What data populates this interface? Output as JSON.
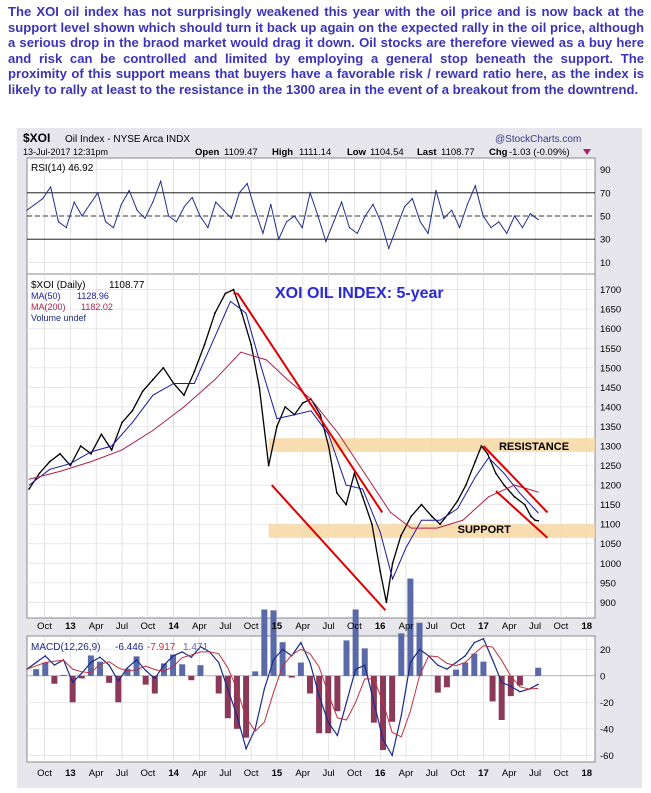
{
  "commentary": "The XOI oil index has not surprisingly weakened this year with the oil price and is now back at the support level shown which should turn it back up again on the expected rally in the oil price, although a serious drop in the braod market would drag it down. Oil stocks are therefore viewed as a buy here and risk can be controlled and limited by employing a general stop beneath the support. The proximity of this support means that buyers have a favorable risk / reward ratio here, as the index is likely to rally at least to the resistance in the 1300 area in the event of a breakout from the downtrend.",
  "header": {
    "symbol": "$XOI",
    "name": "Oil Index - NYSE Arca INDX",
    "source": "@StockCharts.com",
    "date": "13-Jul-2017 12:31pm",
    "open_label": "Open",
    "open": "1109.47",
    "high_label": "High",
    "high": "1111.14",
    "low_label": "Low",
    "low": "1104.54",
    "last_label": "Last",
    "last": "1108.77",
    "chg_label": "Chg",
    "chg": "-1.03 (-0.09%)"
  },
  "colors": {
    "price": "#000000",
    "ma50": "#1a1aa0",
    "ma200": "#b0204a",
    "rsi": "#1f2e8a",
    "macd": "#1a2a8a",
    "signal": "#c03040",
    "hist_pos": "#5a6aa8",
    "hist_neg": "#8a3a58",
    "annotation": "#dd0000",
    "zone": "#f7d9a8",
    "frame_bg": "#e6e6ec"
  },
  "chart_data": [
    {
      "type": "line",
      "panel": "rsi",
      "legend": "RSI(14) 46.92",
      "y_ticks": [
        "90",
        "70",
        "50",
        "30",
        "10"
      ],
      "ylim": [
        0,
        100
      ],
      "reference_lines": [
        70,
        50,
        30
      ],
      "last_value": 46.92,
      "series": [
        {
          "name": "RSI(14)",
          "values": [
            55,
            60,
            65,
            75,
            45,
            40,
            62,
            50,
            60,
            70,
            45,
            40,
            60,
            72,
            55,
            48,
            62,
            80,
            50,
            45,
            58,
            66,
            50,
            40,
            62,
            55,
            48,
            70,
            78,
            55,
            35,
            60,
            30,
            45,
            50,
            40,
            70,
            50,
            28,
            45,
            62,
            40,
            35,
            50,
            60,
            45,
            22,
            40,
            58,
            65,
            45,
            35,
            72,
            48,
            55,
            40,
            60,
            76,
            50,
            40,
            45,
            35,
            50,
            40,
            52,
            46.92
          ]
        }
      ]
    },
    {
      "type": "line",
      "panel": "price",
      "title": "XOI OIL INDEX: 5-year",
      "legend": [
        {
          "symbol": "$XOI (Daily)",
          "value": "1108.77"
        },
        {
          "symbol": "MA(50)",
          "value": "1128.96"
        },
        {
          "symbol": "MA(200)",
          "value": "1182.02"
        },
        {
          "symbol": "Volume undef",
          "value": ""
        }
      ],
      "y_ticks": [
        "1700",
        "1650",
        "1600",
        "1550",
        "1500",
        "1450",
        "1400",
        "1350",
        "1300",
        "1250",
        "1200",
        "1150",
        "1100",
        "1050",
        "1000",
        "950",
        "900"
      ],
      "ylim": [
        860,
        1740
      ],
      "x_ticks": [
        "Oct",
        "13",
        "Apr",
        "Jul",
        "Oct",
        "14",
        "Apr",
        "Jul",
        "Oct",
        "15",
        "Apr",
        "Jul",
        "Oct",
        "16",
        "Apr",
        "Jul",
        "Oct",
        "17",
        "Apr",
        "Jul",
        "Oct",
        "18"
      ],
      "x_span": [
        2012.58,
        2018.08
      ],
      "series": [
        {
          "name": "$XOI (Daily)",
          "values": [
            [
              2012.6,
              1190
            ],
            [
              2012.7,
              1230
            ],
            [
              2012.8,
              1260
            ],
            [
              2012.9,
              1280
            ],
            [
              2013.0,
              1250
            ],
            [
              2013.1,
              1300
            ],
            [
              2013.2,
              1280
            ],
            [
              2013.3,
              1330
            ],
            [
              2013.4,
              1290
            ],
            [
              2013.5,
              1360
            ],
            [
              2013.6,
              1390
            ],
            [
              2013.7,
              1440
            ],
            [
              2013.8,
              1470
            ],
            [
              2013.9,
              1500
            ],
            [
              2014.0,
              1460
            ],
            [
              2014.1,
              1430
            ],
            [
              2014.2,
              1490
            ],
            [
              2014.3,
              1560
            ],
            [
              2014.4,
              1640
            ],
            [
              2014.5,
              1690
            ],
            [
              2014.58,
              1700
            ],
            [
              2014.66,
              1640
            ],
            [
              2014.75,
              1560
            ],
            [
              2014.83,
              1450
            ],
            [
              2014.92,
              1250
            ],
            [
              2015.0,
              1350
            ],
            [
              2015.08,
              1400
            ],
            [
              2015.17,
              1380
            ],
            [
              2015.25,
              1410
            ],
            [
              2015.33,
              1420
            ],
            [
              2015.42,
              1380
            ],
            [
              2015.5,
              1300
            ],
            [
              2015.58,
              1180
            ],
            [
              2015.67,
              1150
            ],
            [
              2015.75,
              1230
            ],
            [
              2015.83,
              1170
            ],
            [
              2015.92,
              1100
            ],
            [
              2016.0,
              980
            ],
            [
              2016.06,
              900
            ],
            [
              2016.12,
              1000
            ],
            [
              2016.2,
              1070
            ],
            [
              2016.3,
              1120
            ],
            [
              2016.4,
              1150
            ],
            [
              2016.5,
              1120
            ],
            [
              2016.58,
              1100
            ],
            [
              2016.67,
              1130
            ],
            [
              2016.75,
              1160
            ],
            [
              2016.83,
              1200
            ],
            [
              2016.92,
              1260
            ],
            [
              2016.98,
              1300
            ],
            [
              2017.04,
              1280
            ],
            [
              2017.12,
              1230
            ],
            [
              2017.2,
              1200
            ],
            [
              2017.3,
              1170
            ],
            [
              2017.4,
              1150
            ],
            [
              2017.46,
              1120
            ],
            [
              2017.5,
              1110
            ],
            [
              2017.53,
              1108.77
            ]
          ]
        },
        {
          "name": "MA(50)",
          "values": [
            [
              2012.6,
              1200
            ],
            [
              2012.8,
              1240
            ],
            [
              2013.0,
              1255
            ],
            [
              2013.2,
              1285
            ],
            [
              2013.4,
              1300
            ],
            [
              2013.6,
              1360
            ],
            [
              2013.8,
              1430
            ],
            [
              2014.0,
              1460
            ],
            [
              2014.2,
              1460
            ],
            [
              2014.4,
              1580
            ],
            [
              2014.55,
              1670
            ],
            [
              2014.7,
              1640
            ],
            [
              2014.85,
              1500
            ],
            [
              2015.0,
              1370
            ],
            [
              2015.17,
              1380
            ],
            [
              2015.33,
              1390
            ],
            [
              2015.5,
              1330
            ],
            [
              2015.67,
              1200
            ],
            [
              2015.83,
              1190
            ],
            [
              2016.0,
              1080
            ],
            [
              2016.12,
              960
            ],
            [
              2016.25,
              1040
            ],
            [
              2016.4,
              1110
            ],
            [
              2016.58,
              1110
            ],
            [
              2016.75,
              1140
            ],
            [
              2016.92,
              1220
            ],
            [
              2017.05,
              1270
            ],
            [
              2017.2,
              1230
            ],
            [
              2017.35,
              1180
            ],
            [
              2017.53,
              1128.96
            ]
          ]
        },
        {
          "name": "MA(200)",
          "values": [
            [
              2012.6,
              1215
            ],
            [
              2012.9,
              1235
            ],
            [
              2013.2,
              1260
            ],
            [
              2013.5,
              1290
            ],
            [
              2013.8,
              1340
            ],
            [
              2014.1,
              1400
            ],
            [
              2014.4,
              1470
            ],
            [
              2014.65,
              1540
            ],
            [
              2014.9,
              1520
            ],
            [
              2015.1,
              1470
            ],
            [
              2015.33,
              1420
            ],
            [
              2015.6,
              1330
            ],
            [
              2015.85,
              1230
            ],
            [
              2016.1,
              1130
            ],
            [
              2016.3,
              1090
            ],
            [
              2016.55,
              1090
            ],
            [
              2016.8,
              1110
            ],
            [
              2017.05,
              1170
            ],
            [
              2017.3,
              1200
            ],
            [
              2017.53,
              1182.02
            ]
          ]
        }
      ],
      "annotations": [
        {
          "label": "RESISTANCE",
          "from": 1285,
          "to": 1320
        },
        {
          "label": "SUPPORT",
          "from": 1065,
          "to": 1100
        }
      ],
      "trendlines": [
        {
          "from": [
            2014.62,
            1690
          ],
          "to": [
            2016.02,
            1130
          ]
        },
        {
          "from": [
            2014.62,
            1690
          ],
          "to": [
            2014.58,
            1690
          ]
        },
        {
          "from": [
            2014.95,
            1200
          ],
          "to": [
            2016.05,
            880
          ]
        },
        {
          "from": [
            2017.0,
            1300
          ],
          "to": [
            2017.62,
            1130
          ]
        },
        {
          "from": [
            2017.12,
            1185
          ],
          "to": [
            2017.62,
            1065
          ]
        }
      ]
    },
    {
      "type": "bar",
      "panel": "macd",
      "legend": {
        "name": "MACD(12,26,9)",
        "macd": "-6.446",
        "signal": "-7.917",
        "hist": "1.471"
      },
      "y_ticks": [
        "20",
        "0",
        "-20",
        "-40",
        "-60"
      ],
      "ylim": [
        -65,
        30
      ],
      "series": [
        {
          "name": "MACD",
          "values": [
            5,
            10,
            15,
            8,
            12,
            -5,
            2,
            10,
            14,
            8,
            -4,
            6,
            12,
            4,
            -2,
            8,
            15,
            18,
            14,
            22,
            18,
            10,
            -10,
            -30,
            -55,
            -40,
            -10,
            12,
            20,
            15,
            25,
            10,
            -15,
            -35,
            -45,
            -20,
            5,
            8,
            -20,
            -48,
            -60,
            -30,
            10,
            20,
            15,
            8,
            5,
            10,
            15,
            25,
            28,
            12,
            -5,
            -8,
            -12,
            -10,
            -6.446
          ]
        }
      ]
    }
  ]
}
